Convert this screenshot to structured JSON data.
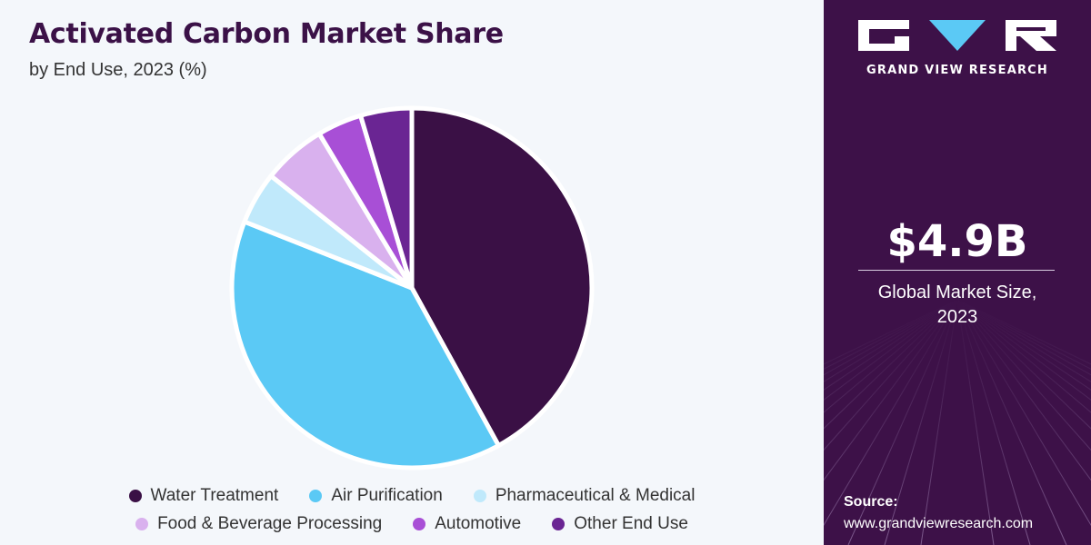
{
  "header": {
    "title": "Activated Carbon Market Share",
    "subtitle": "by End Use, 2023 (%)"
  },
  "chart_data": {
    "type": "pie",
    "title": "Activated Carbon Market Share",
    "subtitle": "by End Use, 2023 (%)",
    "categories": [
      "Water Treatment",
      "Air Purification",
      "Pharmaceutical & Medical",
      "Food & Beverage Processing",
      "Automotive",
      "Other End Use"
    ],
    "values": [
      42.0,
      39.0,
      4.7,
      5.7,
      4.0,
      4.6
    ],
    "colors": [
      "#3a1045",
      "#5bc9f5",
      "#c0e9fb",
      "#d9b1ee",
      "#a84fd6",
      "#6a2593"
    ],
    "legend": "bottom"
  },
  "sidebar": {
    "brand": "GRAND VIEW RESEARCH",
    "market_value": "$4.9B",
    "market_label_line1": "Global Market Size,",
    "market_label_line2": "2023",
    "source_label": "Source:",
    "source_url": "www.grandviewresearch.com"
  }
}
